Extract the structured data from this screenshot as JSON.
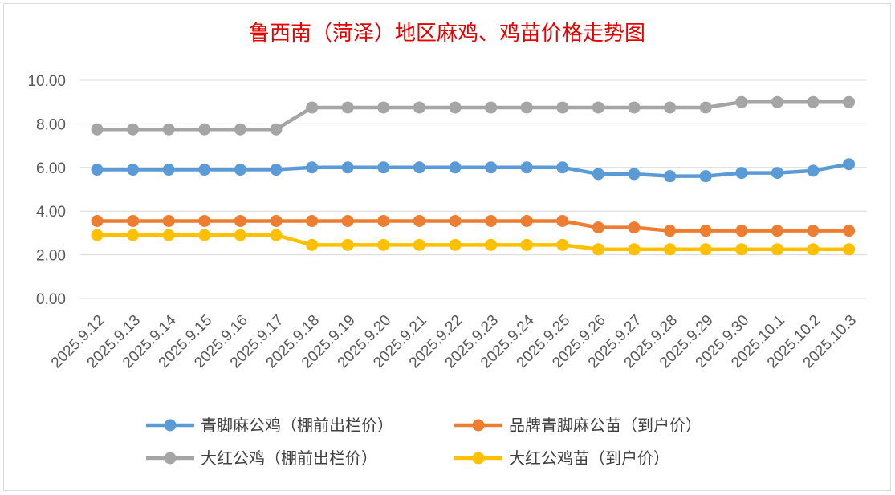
{
  "chart_data": {
    "type": "line",
    "title": "鲁西南（菏泽）地区麻鸡、鸡苗价格走势图",
    "xlabel": "",
    "ylabel": "",
    "ylim": [
      0,
      10
    ],
    "yticks": [
      "0.00",
      "2.00",
      "4.00",
      "6.00",
      "8.00",
      "10.00"
    ],
    "grid": true,
    "legend_position": "bottom",
    "categories": [
      "2025.9.12",
      "2025.9.13",
      "2025.9.14",
      "2025.9.15",
      "2025.9.16",
      "2025.9.17",
      "2025.9.18",
      "2025.9.19",
      "2025.9.20",
      "2025.9.21",
      "2025.9.22",
      "2025.9.23",
      "2025.9.24",
      "2025.9.25",
      "2025.9.26",
      "2025.9.27",
      "2025.9.28",
      "2025.9.29",
      "2025.9.30",
      "2025.10.1",
      "2025.10.2",
      "2025.10.3"
    ],
    "series": [
      {
        "name": "青脚麻公鸡（棚前出栏价）",
        "color": "#5b9bd5",
        "values": [
          5.9,
          5.9,
          5.9,
          5.9,
          5.9,
          5.9,
          6.0,
          6.0,
          6.0,
          6.0,
          6.0,
          6.0,
          6.0,
          6.0,
          5.7,
          5.7,
          5.6,
          5.6,
          5.75,
          5.75,
          5.85,
          6.15
        ]
      },
      {
        "name": "品牌青脚麻公苗（到户价）",
        "color": "#ed7d31",
        "values": [
          3.55,
          3.55,
          3.55,
          3.55,
          3.55,
          3.55,
          3.55,
          3.55,
          3.55,
          3.55,
          3.55,
          3.55,
          3.55,
          3.55,
          3.25,
          3.25,
          3.1,
          3.1,
          3.1,
          3.1,
          3.1,
          3.1
        ]
      },
      {
        "name": "大红公鸡（棚前出栏价）",
        "color": "#a5a5a5",
        "values": [
          7.75,
          7.75,
          7.75,
          7.75,
          7.75,
          7.75,
          8.75,
          8.75,
          8.75,
          8.75,
          8.75,
          8.75,
          8.75,
          8.75,
          8.75,
          8.75,
          8.75,
          8.75,
          9.0,
          9.0,
          9.0,
          9.0
        ]
      },
      {
        "name": "大红公鸡苗（到户价）",
        "color": "#ffc000",
        "values": [
          2.9,
          2.9,
          2.9,
          2.9,
          2.9,
          2.9,
          2.45,
          2.45,
          2.45,
          2.45,
          2.45,
          2.45,
          2.45,
          2.45,
          2.25,
          2.25,
          2.25,
          2.25,
          2.25,
          2.25,
          2.25,
          2.25
        ]
      }
    ]
  }
}
